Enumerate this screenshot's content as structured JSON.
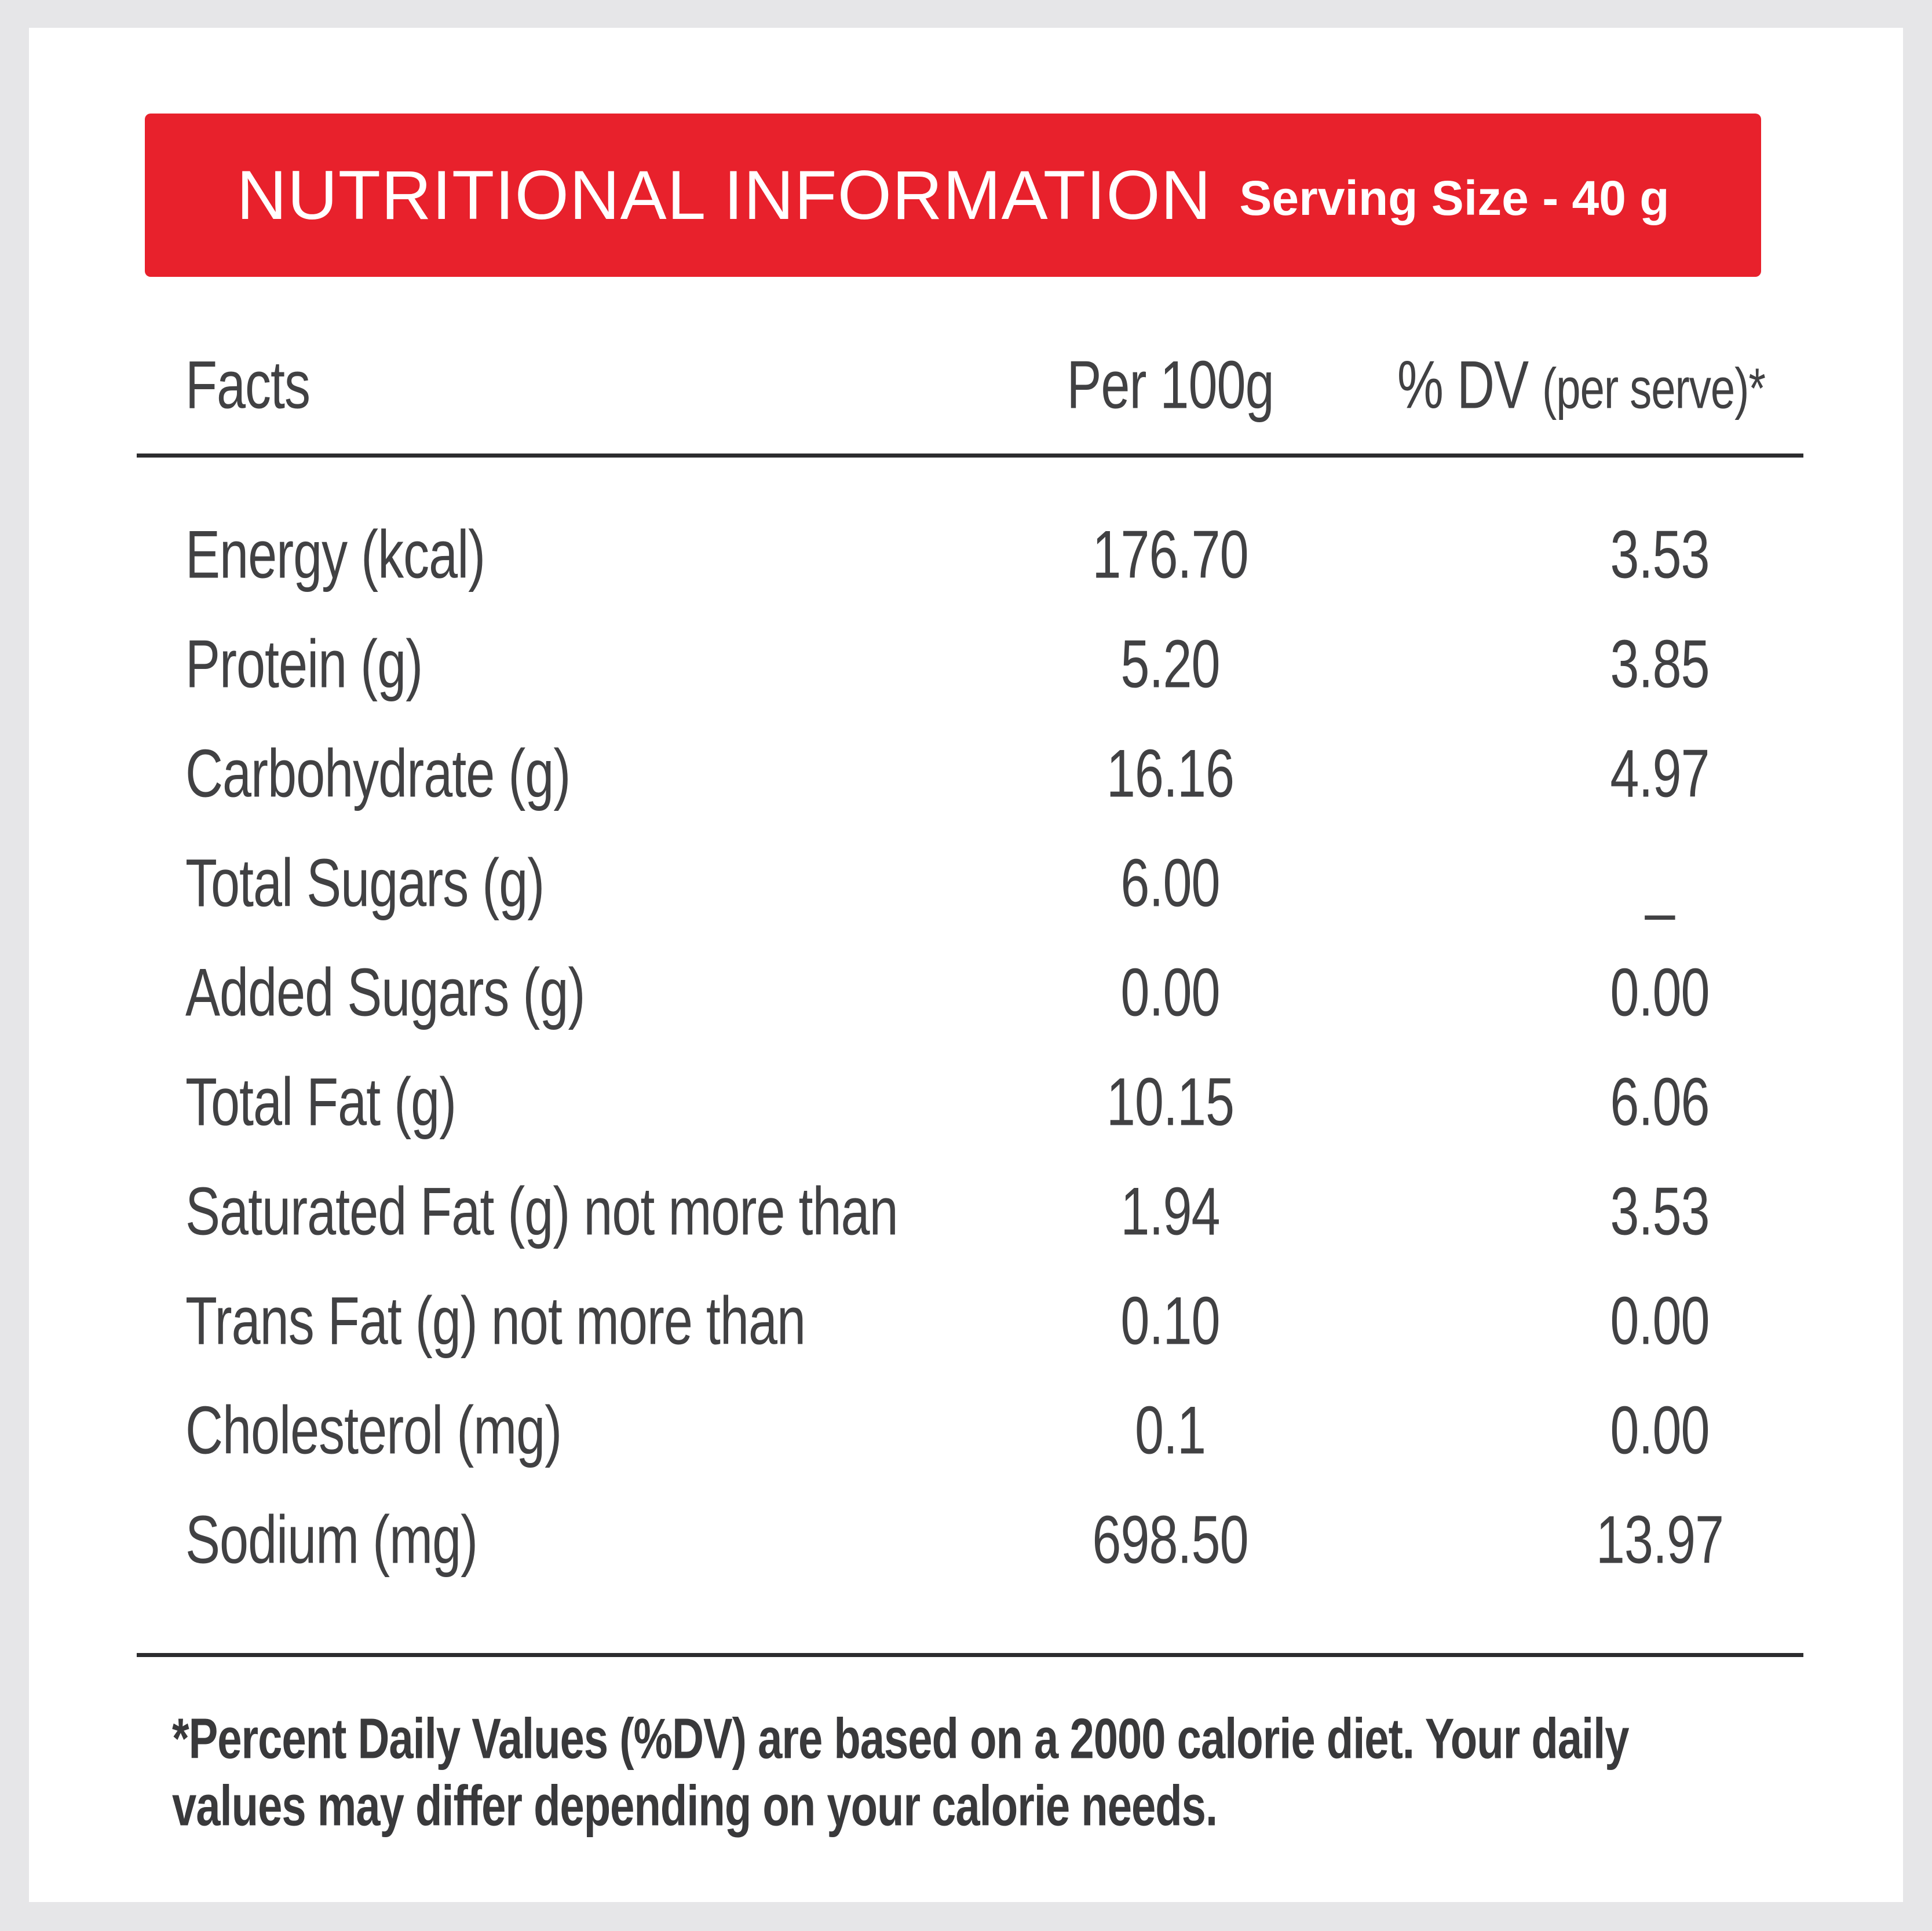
{
  "banner": {
    "title": "NUTRITIONAL INFORMATION",
    "serving_size": "Serving Size - 40 g"
  },
  "table": {
    "header": {
      "facts": "Facts",
      "per_100g": "Per 100g",
      "dv_main": "% DV",
      "dv_sub": "(per serve)*"
    },
    "rows": [
      {
        "label": "Energy (kcal)",
        "per100g": "176.70",
        "dv": "3.53"
      },
      {
        "label": "Protein (g)",
        "per100g": "5.20",
        "dv": "3.85"
      },
      {
        "label": "Carbohydrate (g)",
        "per100g": "16.16",
        "dv": "4.97"
      },
      {
        "label": "Total Sugars (g)",
        "per100g": "6.00",
        "dv": "_"
      },
      {
        "label": "Added Sugars (g)",
        "per100g": "0.00",
        "dv": "0.00"
      },
      {
        "label": "Total Fat (g)",
        "per100g": "10.15",
        "dv": "6.06"
      },
      {
        "label": "Saturated Fat (g) not more than",
        "per100g": "1.94",
        "dv": "3.53"
      },
      {
        "label": "Trans Fat (g) not more than",
        "per100g": "0.10",
        "dv": "0.00"
      },
      {
        "label": "Cholesterol (mg)",
        "per100g": "0.1",
        "dv": "0.00"
      },
      {
        "label": "Sodium (mg)",
        "per100g": "698.50",
        "dv": "13.97"
      }
    ]
  },
  "footnote": {
    "line1": "*Percent Daily Values (%DV) are based on a 2000 calorie diet. Your daily",
    "line2": "values may differ depending on your calorie needs."
  },
  "colors": {
    "banner_red": "#e8212c",
    "page_background": "#e6e6e8",
    "card_background": "#ffffff",
    "text": "#414143",
    "rule": "#2c2c2e"
  }
}
